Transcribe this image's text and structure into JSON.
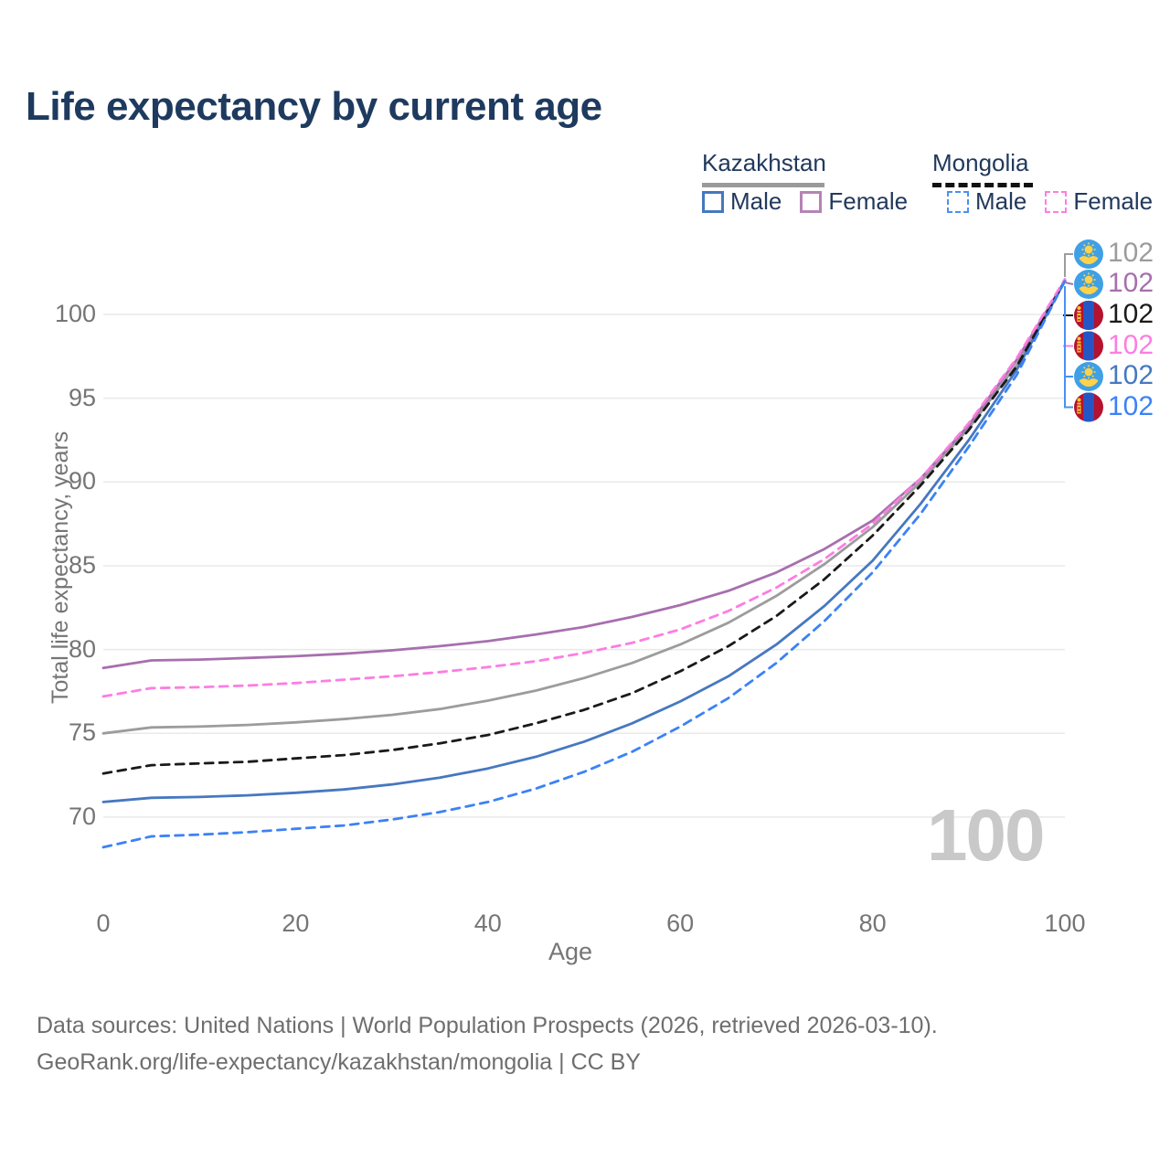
{
  "title": "Life expectancy by current age",
  "legend": {
    "groups": [
      {
        "label": "Kazakhstan",
        "underline_style": "solid",
        "underline_color": "#9a9a9a",
        "items": [
          {
            "label": "Male",
            "color": "#4678c0",
            "dashed": false
          },
          {
            "label": "Female",
            "color": "#b583b5",
            "dashed": false
          }
        ]
      },
      {
        "label": "Mongolia",
        "underline_style": "dashed",
        "underline_color": "#111111",
        "items": [
          {
            "label": "Male",
            "color": "#4a90f5",
            "dashed": true
          },
          {
            "label": "Female",
            "color": "#fd7de2",
            "dashed": true
          }
        ]
      }
    ]
  },
  "chart_data": {
    "type": "line",
    "title": "Life expectancy by current age",
    "xlabel": "Age",
    "ylabel": "Total life expectancy, years",
    "x": [
      0,
      5,
      10,
      15,
      20,
      25,
      30,
      35,
      40,
      45,
      50,
      55,
      60,
      65,
      70,
      75,
      80,
      85,
      90,
      95,
      100
    ],
    "x_ticks": [
      0,
      20,
      40,
      60,
      80,
      100
    ],
    "y_ticks": [
      70,
      75,
      80,
      85,
      90,
      95,
      100
    ],
    "xlim": [
      0,
      100
    ],
    "ylim": [
      66.5,
      103
    ],
    "grid": "horizontal-only",
    "legend_position": "top-right",
    "series": [
      {
        "name": "Kazakhstan Both sexes",
        "country": "Kazakhstan",
        "sex": "Both",
        "color": "#9c9c9c",
        "dashed": false,
        "values": [
          75.0,
          75.35,
          75.4,
          75.5,
          75.65,
          75.85,
          76.1,
          76.45,
          76.95,
          77.55,
          78.3,
          79.2,
          80.3,
          81.6,
          83.2,
          85.1,
          87.3,
          90.0,
          93.2,
          97.0,
          102.0
        ]
      },
      {
        "name": "Kazakhstan Female",
        "country": "Kazakhstan",
        "sex": "Female",
        "color": "#a76fae",
        "dashed": false,
        "values": [
          78.9,
          79.35,
          79.4,
          79.5,
          79.6,
          79.75,
          79.95,
          80.2,
          80.5,
          80.9,
          81.35,
          81.95,
          82.65,
          83.5,
          84.6,
          86.0,
          87.7,
          90.2,
          93.4,
          97.3,
          102.0
        ]
      },
      {
        "name": "Kazakhstan Male",
        "country": "Kazakhstan",
        "sex": "Male",
        "color": "#4678c0",
        "dashed": false,
        "values": [
          70.9,
          71.15,
          71.2,
          71.3,
          71.45,
          71.65,
          71.95,
          72.35,
          72.9,
          73.6,
          74.5,
          75.6,
          76.9,
          78.4,
          80.3,
          82.6,
          85.3,
          88.7,
          92.5,
          96.7,
          102.0
        ]
      },
      {
        "name": "Mongolia Both sexes",
        "country": "Mongolia",
        "sex": "Both",
        "color": "#1a1a1a",
        "dashed": true,
        "values": [
          72.6,
          73.1,
          73.2,
          73.3,
          73.5,
          73.7,
          74.0,
          74.4,
          74.9,
          75.6,
          76.4,
          77.4,
          78.7,
          80.2,
          82.0,
          84.2,
          86.8,
          89.8,
          93.1,
          96.9,
          102.0
        ]
      },
      {
        "name": "Mongolia Female",
        "country": "Mongolia",
        "sex": "Female",
        "color": "#fd7de2",
        "dashed": true,
        "values": [
          77.2,
          77.7,
          77.75,
          77.85,
          78.0,
          78.2,
          78.4,
          78.65,
          78.95,
          79.3,
          79.8,
          80.4,
          81.2,
          82.3,
          83.7,
          85.4,
          87.5,
          90.2,
          93.5,
          97.4,
          102.1
        ]
      },
      {
        "name": "Mongolia Male",
        "country": "Mongolia",
        "sex": "Male",
        "color": "#3b82f6",
        "dashed": true,
        "values": [
          68.2,
          68.85,
          68.95,
          69.1,
          69.3,
          69.5,
          69.85,
          70.3,
          70.9,
          71.7,
          72.7,
          73.9,
          75.4,
          77.1,
          79.2,
          81.7,
          84.6,
          88.1,
          92.1,
          96.4,
          102.0
        ]
      }
    ],
    "end_labels": [
      {
        "flag": "kazakhstan",
        "value": "102",
        "color": "#9c9c9c"
      },
      {
        "flag": "kazakhstan",
        "value": "102",
        "color": "#a76fae"
      },
      {
        "flag": "mongolia",
        "value": "102",
        "color": "#1a1a1a"
      },
      {
        "flag": "mongolia",
        "value": "102",
        "color": "#fd7de2"
      },
      {
        "flag": "kazakhstan",
        "value": "102",
        "color": "#4678c0"
      },
      {
        "flag": "mongolia",
        "value": "102",
        "color": "#3b82f6"
      }
    ],
    "watermark": "100"
  },
  "footer": {
    "line1": "Data sources: United Nations | World Population Prospects (2026, retrieved 2026-03-10).",
    "line2": "GeoRank.org/life-expectancy/kazakhstan/mongolia | CC BY"
  }
}
